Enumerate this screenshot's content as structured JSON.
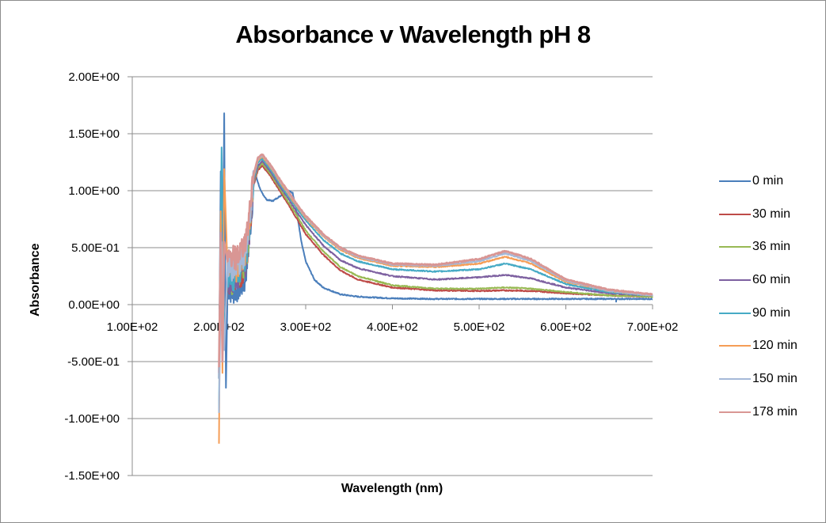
{
  "chart_data": {
    "type": "line",
    "title": "Absorbance v Wavelength pH 8",
    "xlabel": "Wavelength (nm)",
    "ylabel": "Absorbance",
    "xlim": [
      100,
      700
    ],
    "ylim": [
      -1.5,
      2.0
    ],
    "x_ticks": [
      100,
      200,
      300,
      400,
      500,
      600,
      700
    ],
    "x_tick_labels": [
      "1.00E+02",
      "2.00E+02",
      "3.00E+02",
      "4.00E+02",
      "5.00E+02",
      "6.00E+02",
      "7.00E+02"
    ],
    "y_ticks": [
      2.0,
      1.5,
      1.0,
      0.5,
      0.0,
      -0.5,
      -1.0,
      -1.5
    ],
    "y_tick_labels": [
      "2.00E+00",
      "1.50E+00",
      "1.00E+00",
      "5.00E-01",
      "0.00E+00",
      "-5.00E-01",
      "-1.00E+00",
      "-1.50E+00"
    ],
    "grid": "horizontal",
    "legend_position": "right",
    "x_axis_crosses_at": 0,
    "series": [
      {
        "name": "0 min",
        "color": "#4a7ebb",
        "x": [
          200,
          202,
          204,
          206,
          208,
          210,
          215,
          220,
          225,
          230,
          235,
          240,
          243,
          248,
          255,
          262,
          270,
          280,
          285,
          290,
          295,
          300,
          310,
          320,
          340,
          360,
          400,
          450,
          500,
          550,
          600,
          650,
          700
        ],
        "y": [
          -0.65,
          1.17,
          -0.2,
          1.68,
          -0.73,
          0.15,
          0.1,
          0.12,
          0.15,
          0.2,
          0.55,
          1.05,
          1.12,
          1.0,
          0.92,
          0.91,
          0.95,
          1.0,
          0.98,
          0.8,
          0.55,
          0.38,
          0.22,
          0.15,
          0.09,
          0.07,
          0.055,
          0.05,
          0.05,
          0.05,
          0.05,
          0.05,
          0.05
        ]
      },
      {
        "name": "30 min",
        "color": "#be4b48",
        "x": [
          200,
          203,
          206,
          210,
          215,
          220,
          225,
          230,
          235,
          240,
          245,
          250,
          260,
          270,
          280,
          290,
          300,
          320,
          340,
          360,
          400,
          450,
          500,
          530,
          560,
          600,
          650,
          700
        ],
        "y": [
          -0.6,
          0.6,
          -0.3,
          0.2,
          0.18,
          0.2,
          0.25,
          0.3,
          0.6,
          1.05,
          1.18,
          1.22,
          1.12,
          1.0,
          0.88,
          0.75,
          0.62,
          0.44,
          0.3,
          0.22,
          0.15,
          0.125,
          0.12,
          0.125,
          0.12,
          0.1,
          0.08,
          0.07
        ]
      },
      {
        "name": "36 min",
        "color": "#98b954",
        "x": [
          200,
          203,
          206,
          210,
          215,
          220,
          225,
          230,
          235,
          240,
          245,
          250,
          260,
          270,
          280,
          290,
          300,
          320,
          340,
          360,
          400,
          450,
          500,
          530,
          560,
          600,
          650,
          700
        ],
        "y": [
          -0.6,
          1.07,
          -0.3,
          0.22,
          0.2,
          0.22,
          0.27,
          0.32,
          0.62,
          1.07,
          1.2,
          1.24,
          1.14,
          1.02,
          0.9,
          0.78,
          0.65,
          0.47,
          0.33,
          0.25,
          0.17,
          0.14,
          0.14,
          0.15,
          0.14,
          0.11,
          0.08,
          0.07
        ]
      },
      {
        "name": "60 min",
        "color": "#7d60a0",
        "x": [
          200,
          203,
          206,
          210,
          215,
          220,
          225,
          230,
          235,
          240,
          245,
          250,
          260,
          270,
          280,
          290,
          300,
          320,
          340,
          360,
          400,
          450,
          500,
          530,
          560,
          600,
          650,
          700
        ],
        "y": [
          -0.6,
          0.7,
          -0.3,
          0.22,
          0.2,
          0.22,
          0.27,
          0.32,
          0.62,
          1.08,
          1.22,
          1.26,
          1.16,
          1.04,
          0.93,
          0.81,
          0.7,
          0.52,
          0.39,
          0.32,
          0.25,
          0.22,
          0.24,
          0.26,
          0.23,
          0.15,
          0.1,
          0.08
        ]
      },
      {
        "name": "90 min",
        "color": "#46aac5",
        "x": [
          200,
          203,
          206,
          210,
          215,
          220,
          225,
          230,
          235,
          240,
          245,
          250,
          260,
          270,
          280,
          290,
          300,
          320,
          340,
          360,
          400,
          450,
          500,
          530,
          560,
          600,
          650,
          700
        ],
        "y": [
          -0.95,
          1.38,
          -0.3,
          0.25,
          0.22,
          0.25,
          0.3,
          0.35,
          0.65,
          1.1,
          1.25,
          1.28,
          1.18,
          1.06,
          0.95,
          0.84,
          0.74,
          0.57,
          0.45,
          0.38,
          0.31,
          0.29,
          0.31,
          0.36,
          0.31,
          0.18,
          0.11,
          0.08
        ]
      },
      {
        "name": "120 min",
        "color": "#f59d56",
        "x": [
          200,
          202,
          204,
          206,
          210,
          215,
          220,
          225,
          230,
          235,
          240,
          245,
          250,
          260,
          270,
          280,
          290,
          300,
          320,
          340,
          360,
          400,
          450,
          500,
          530,
          560,
          600,
          650,
          700
        ],
        "y": [
          -1.22,
          0.82,
          -0.6,
          1.19,
          0.3,
          0.35,
          0.3,
          0.38,
          0.45,
          0.7,
          1.12,
          1.27,
          1.3,
          1.2,
          1.08,
          0.97,
          0.86,
          0.76,
          0.6,
          0.48,
          0.41,
          0.34,
          0.33,
          0.36,
          0.42,
          0.36,
          0.2,
          0.12,
          0.08
        ]
      },
      {
        "name": "150 min",
        "color": "#a5b9d8",
        "x": [
          200,
          203,
          206,
          210,
          215,
          220,
          225,
          230,
          235,
          240,
          245,
          250,
          260,
          270,
          280,
          290,
          300,
          320,
          340,
          360,
          400,
          450,
          500,
          530,
          560,
          600,
          650,
          700
        ],
        "y": [
          -0.95,
          0.55,
          -0.4,
          0.35,
          0.3,
          0.35,
          0.38,
          0.45,
          0.72,
          1.13,
          1.28,
          1.31,
          1.21,
          1.09,
          0.98,
          0.87,
          0.77,
          0.61,
          0.49,
          0.42,
          0.35,
          0.34,
          0.38,
          0.45,
          0.38,
          0.21,
          0.12,
          0.08
        ]
      },
      {
        "name": "178 min",
        "color": "#d99694",
        "x": [
          200,
          202,
          204,
          206,
          210,
          215,
          220,
          225,
          230,
          235,
          240,
          245,
          250,
          260,
          270,
          280,
          290,
          300,
          320,
          340,
          360,
          400,
          450,
          500,
          530,
          560,
          600,
          650,
          700
        ],
        "y": [
          -0.55,
          0.63,
          -0.5,
          0.55,
          0.38,
          0.42,
          0.4,
          0.45,
          0.52,
          0.78,
          1.15,
          1.29,
          1.32,
          1.22,
          1.1,
          0.99,
          0.88,
          0.78,
          0.62,
          0.5,
          0.43,
          0.36,
          0.35,
          0.4,
          0.47,
          0.4,
          0.22,
          0.13,
          0.09
        ]
      }
    ]
  }
}
